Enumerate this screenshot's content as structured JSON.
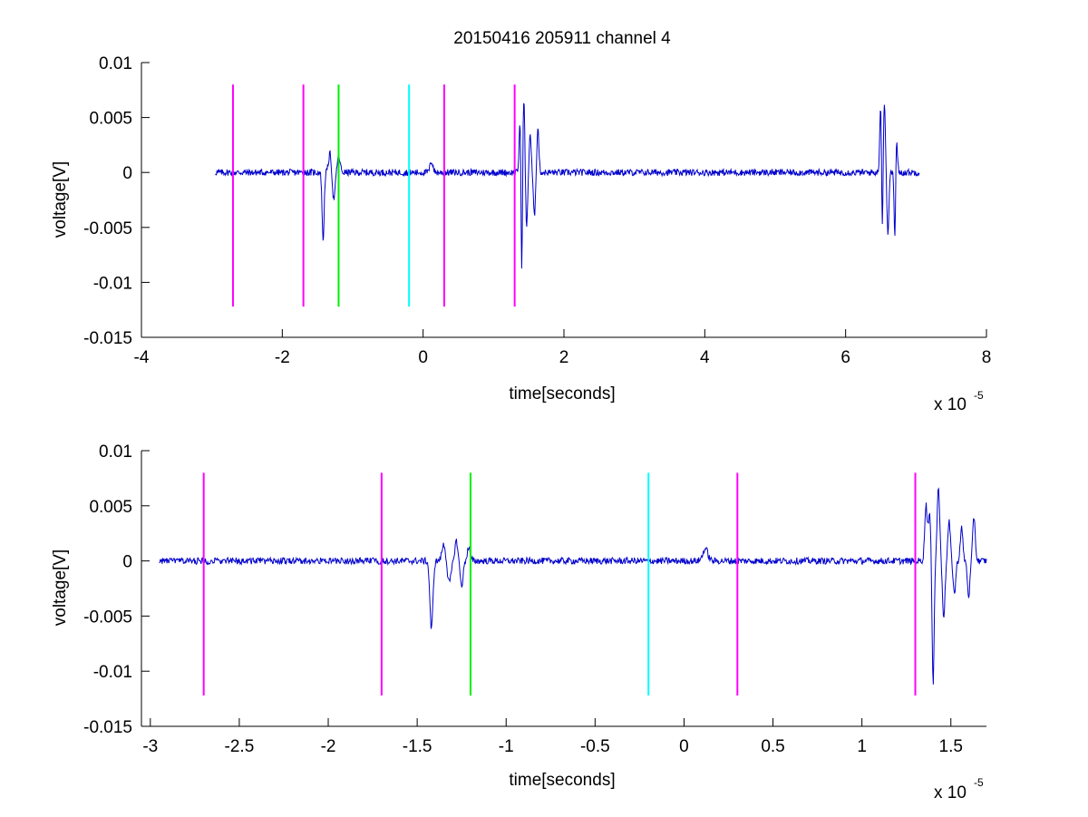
{
  "figure": {
    "title": "20150416 205911 channel 4"
  },
  "colors": {
    "signal": "#0000cc",
    "magenta": "#ff00ff",
    "green": "#00ee00",
    "cyan": "#00ffff",
    "axis": "#000000",
    "background": "#ffffff"
  },
  "chart_data": [
    {
      "type": "line",
      "title": "20150416 205911 channel 4",
      "xlabel": "time[seconds]",
      "ylabel": "voltage[V]",
      "x_multiplier": "x 10",
      "x_exponent": "-5",
      "xlim": [
        -4,
        8
      ],
      "ylim": [
        -0.015,
        0.01
      ],
      "xticks": [
        -4,
        -2,
        0,
        2,
        4,
        6,
        8
      ],
      "xtick_labels": [
        "-4",
        "-2",
        "0",
        "2",
        "4",
        "6",
        "8"
      ],
      "yticks": [
        -0.015,
        -0.01,
        -0.005,
        0,
        0.005,
        0.01
      ],
      "ytick_labels": [
        "-0.015",
        "-0.01",
        "-0.005",
        "0",
        "0.005",
        "0.01"
      ],
      "grid": false,
      "series": [
        {
          "color": "#0000cc",
          "x_range": [
            -2.95,
            7.05
          ],
          "noise": 0.0003,
          "bursts": [
            {
              "x": -1.42,
              "amp": -0.0062,
              "width": 0.02
            },
            {
              "x": -1.32,
              "amp": 0.0018,
              "width": 0.03
            },
            {
              "x": -1.27,
              "amp": -0.0025,
              "width": 0.03
            },
            {
              "x": -1.2,
              "amp": 0.0015,
              "width": 0.03
            },
            {
              "x": 0.12,
              "amp": 0.001,
              "width": 0.03
            },
            {
              "x": 1.38,
              "amp": 0.0055,
              "width": 0.02
            },
            {
              "x": 1.4,
              "amp": -0.0112,
              "width": 0.015
            },
            {
              "x": 1.43,
              "amp": 0.0068,
              "width": 0.02
            },
            {
              "x": 1.47,
              "amp": -0.005,
              "width": 0.02
            },
            {
              "x": 1.52,
              "amp": 0.0035,
              "width": 0.02
            },
            {
              "x": 1.58,
              "amp": -0.004,
              "width": 0.02
            },
            {
              "x": 1.63,
              "amp": 0.004,
              "width": 0.02
            },
            {
              "x": 6.5,
              "amp": 0.0068,
              "width": 0.02
            },
            {
              "x": 6.52,
              "amp": -0.0075,
              "width": 0.015
            },
            {
              "x": 6.55,
              "amp": 0.0065,
              "width": 0.02
            },
            {
              "x": 6.6,
              "amp": -0.0055,
              "width": 0.02
            },
            {
              "x": 6.7,
              "amp": -0.007,
              "width": 0.015
            },
            {
              "x": 6.72,
              "amp": 0.0032,
              "width": 0.02
            }
          ]
        }
      ],
      "markers": [
        {
          "x": -2.7,
          "color": "#ff00ff",
          "y_range": [
            -0.0122,
            0.008
          ]
        },
        {
          "x": -1.7,
          "color": "#ff00ff",
          "y_range": [
            -0.0122,
            0.008
          ]
        },
        {
          "x": -1.2,
          "color": "#00ee00",
          "y_range": [
            -0.0122,
            0.008
          ]
        },
        {
          "x": -0.2,
          "color": "#00ffff",
          "y_range": [
            -0.0122,
            0.008
          ]
        },
        {
          "x": 0.3,
          "color": "#ff00ff",
          "y_range": [
            -0.0122,
            0.008
          ]
        },
        {
          "x": 1.3,
          "color": "#ff00ff",
          "y_range": [
            -0.0122,
            0.008
          ]
        }
      ]
    },
    {
      "type": "line",
      "title": "",
      "xlabel": "time[seconds]",
      "ylabel": "voltage[V]",
      "x_multiplier": "x 10",
      "x_exponent": "-5",
      "xlim": [
        -3.05,
        1.7
      ],
      "ylim": [
        -0.015,
        0.01
      ],
      "xticks": [
        -3,
        -2.5,
        -2,
        -1.5,
        -1,
        -0.5,
        0,
        0.5,
        1,
        1.5
      ],
      "xtick_labels": [
        "-3",
        "-2.5",
        "-2",
        "-1.5",
        "-1",
        "-0.5",
        "0",
        "0.5",
        "1",
        "1.5"
      ],
      "yticks": [
        -0.015,
        -0.01,
        -0.005,
        0,
        0.005,
        0.01
      ],
      "ytick_labels": [
        "-0.015",
        "-0.01",
        "-0.005",
        "0",
        "0.005",
        "0.01"
      ],
      "grid": false,
      "series": [
        {
          "color": "#0000cc",
          "x_range": [
            -2.95,
            1.7
          ],
          "noise": 0.0003,
          "bursts": [
            {
              "x": -1.42,
              "amp": -0.0062,
              "width": 0.012
            },
            {
              "x": -1.35,
              "amp": 0.0015,
              "width": 0.015
            },
            {
              "x": -1.32,
              "amp": -0.002,
              "width": 0.015
            },
            {
              "x": -1.28,
              "amp": 0.0018,
              "width": 0.012
            },
            {
              "x": -1.25,
              "amp": -0.0022,
              "width": 0.012
            },
            {
              "x": -1.21,
              "amp": 0.0012,
              "width": 0.012
            },
            {
              "x": 0.12,
              "amp": 0.0011,
              "width": 0.02
            },
            {
              "x": 1.36,
              "amp": 0.005,
              "width": 0.01
            },
            {
              "x": 1.38,
              "amp": 0.0042,
              "width": 0.01
            },
            {
              "x": 1.4,
              "amp": -0.0112,
              "width": 0.008
            },
            {
              "x": 1.43,
              "amp": 0.0067,
              "width": 0.01
            },
            {
              "x": 1.46,
              "amp": -0.005,
              "width": 0.01
            },
            {
              "x": 1.49,
              "amp": 0.0035,
              "width": 0.01
            },
            {
              "x": 1.52,
              "amp": -0.003,
              "width": 0.01
            },
            {
              "x": 1.56,
              "amp": 0.003,
              "width": 0.01
            },
            {
              "x": 1.6,
              "amp": -0.0032,
              "width": 0.01
            },
            {
              "x": 1.63,
              "amp": 0.004,
              "width": 0.01
            }
          ]
        }
      ],
      "markers": [
        {
          "x": -2.7,
          "color": "#ff00ff",
          "y_range": [
            -0.0122,
            0.008
          ]
        },
        {
          "x": -1.7,
          "color": "#ff00ff",
          "y_range": [
            -0.0122,
            0.008
          ]
        },
        {
          "x": -1.2,
          "color": "#00ee00",
          "y_range": [
            -0.0122,
            0.008
          ]
        },
        {
          "x": -0.2,
          "color": "#00ffff",
          "y_range": [
            -0.0122,
            0.008
          ]
        },
        {
          "x": 0.3,
          "color": "#ff00ff",
          "y_range": [
            -0.0122,
            0.008
          ]
        },
        {
          "x": 1.3,
          "color": "#ff00ff",
          "y_range": [
            -0.0122,
            0.008
          ]
        }
      ]
    }
  ]
}
